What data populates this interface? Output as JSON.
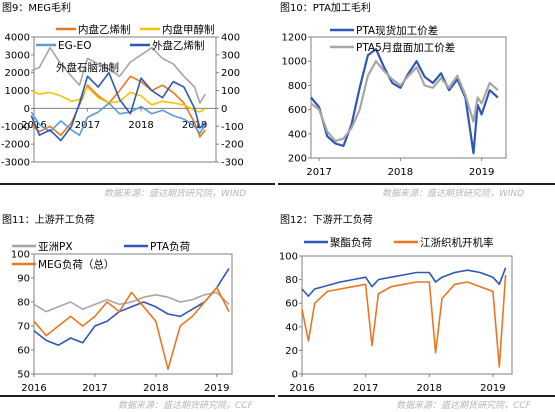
{
  "panels": [
    {
      "id": "p9",
      "title": "图9：MEG毛利",
      "source": "数据来源：盛达期货研究院，WIND"
    },
    {
      "id": "p10",
      "title": "图10：PTA加工毛利",
      "source": "数据来源：盛达期货研究院，WIND"
    },
    {
      "id": "p11",
      "title": "图11：上游开工负荷",
      "source": "数据来源：盛达期货研究院，CCF"
    },
    {
      "id": "p12",
      "title": "图12：下游开工负荷",
      "source": "数据来源：盛达期货研究院，CCF"
    }
  ],
  "chart_data": [
    {
      "type": "line",
      "x_ticks": [
        "2016",
        "2017",
        "2018",
        "2019"
      ],
      "ylim": [
        -3000,
        4000
      ],
      "y_ticks": [
        -3000,
        -2000,
        -1000,
        0,
        1000,
        2000,
        3000,
        4000
      ],
      "y2lim": [
        -300,
        400
      ],
      "y2_ticks": [
        -300,
        -200,
        -100,
        0,
        100,
        200,
        300,
        400
      ],
      "legend": [
        "内盘乙烯制",
        "内盘甲醇制",
        "EG-EO",
        "外盘乙烯制",
        "外盘石脑油制"
      ],
      "series": [
        {
          "name": "内盘乙烯制",
          "axis": "left",
          "color": "#e87722",
          "x": [
            2015.95,
            2016.1,
            2016.3,
            2016.5,
            2016.7,
            2016.85,
            2017.0,
            2017.2,
            2017.4,
            2017.6,
            2017.8,
            2018.0,
            2018.2,
            2018.4,
            2018.6,
            2018.8,
            2019.0,
            2019.1,
            2019.2
          ],
          "values": [
            -900,
            -1300,
            -1000,
            -1500,
            -800,
            200,
            1300,
            700,
            300,
            1000,
            1800,
            1500,
            1000,
            1300,
            900,
            300,
            -800,
            -1600,
            -1200
          ]
        },
        {
          "name": "内盘甲醇制",
          "axis": "left",
          "color": "#f5c400",
          "x": [
            2015.95,
            2016.1,
            2016.3,
            2016.5,
            2016.7,
            2016.85,
            2017.0,
            2017.2,
            2017.4,
            2017.6,
            2017.8,
            2018.0,
            2018.2,
            2018.4,
            2018.6,
            2018.8,
            2019.0,
            2019.1,
            2019.2
          ],
          "values": [
            1000,
            800,
            900,
            700,
            400,
            500,
            1200,
            600,
            300,
            400,
            900,
            700,
            200,
            400,
            300,
            200,
            -100,
            -200,
            0
          ]
        },
        {
          "name": "EG-EO",
          "axis": "left",
          "color": "#5b9bd5",
          "x": [
            2015.95,
            2016.1,
            2016.3,
            2016.5,
            2016.7,
            2016.85,
            2017.0,
            2017.2,
            2017.4,
            2017.6,
            2017.8,
            2018.0,
            2018.2,
            2018.4,
            2018.6,
            2018.8,
            2019.0,
            2019.1,
            2019.2
          ],
          "values": [
            -200,
            -900,
            -1300,
            -700,
            -1200,
            -1500,
            -500,
            -200,
            300,
            -300,
            -200,
            100,
            -300,
            -100,
            -400,
            -600,
            -1000,
            -1400,
            -900
          ]
        },
        {
          "name": "外盘乙烯制",
          "axis": "right",
          "color": "#2e58b5",
          "x": [
            2015.95,
            2016.1,
            2016.3,
            2016.5,
            2016.7,
            2016.85,
            2017.0,
            2017.2,
            2017.4,
            2017.6,
            2017.8,
            2018.0,
            2018.2,
            2018.4,
            2018.6,
            2018.8,
            2019.0,
            2019.1,
            2019.2
          ],
          "values": [
            -40,
            -150,
            -120,
            -180,
            -100,
            30,
            180,
            120,
            200,
            50,
            -30,
            170,
            100,
            60,
            150,
            120,
            0,
            -110,
            -80
          ]
        },
        {
          "name": "外盘石脑油制",
          "axis": "right",
          "color": "#a6a6a6",
          "x": [
            2015.95,
            2016.1,
            2016.3,
            2016.5,
            2016.7,
            2016.85,
            2017.0,
            2017.2,
            2017.4,
            2017.6,
            2017.8,
            2018.0,
            2018.2,
            2018.4,
            2018.6,
            2018.8,
            2019.0,
            2019.1,
            2019.2
          ],
          "values": [
            210,
            230,
            340,
            250,
            180,
            130,
            280,
            250,
            220,
            180,
            260,
            300,
            340,
            280,
            250,
            180,
            120,
            30,
            80
          ]
        }
      ]
    },
    {
      "type": "line",
      "x_ticks": [
        "2017",
        "2018",
        "2019"
      ],
      "ylim": [
        200,
        1200
      ],
      "y_ticks": [
        200,
        400,
        600,
        800,
        1000,
        1200
      ],
      "legend": [
        "PTA现货加工价差",
        "PTA5月盘面加工价差"
      ],
      "series": [
        {
          "name": "PTA现货加工价差",
          "color": "#2e58b5",
          "x": [
            2016.9,
            2017.0,
            2017.1,
            2017.2,
            2017.3,
            2017.4,
            2017.5,
            2017.6,
            2017.7,
            2017.8,
            2017.9,
            2018.0,
            2018.1,
            2018.2,
            2018.3,
            2018.4,
            2018.5,
            2018.6,
            2018.7,
            2018.8,
            2018.9,
            2018.95,
            2019.0,
            2019.1,
            2019.2
          ],
          "values": [
            700,
            620,
            380,
            320,
            300,
            480,
            780,
            1050,
            1100,
            950,
            820,
            780,
            900,
            1000,
            870,
            820,
            900,
            760,
            850,
            700,
            240,
            640,
            560,
            760,
            700
          ]
        },
        {
          "name": "PTA5月盘面加工价差",
          "color": "#a6a6a6",
          "x": [
            2016.9,
            2017.0,
            2017.1,
            2017.2,
            2017.3,
            2017.4,
            2017.5,
            2017.6,
            2017.7,
            2017.8,
            2017.9,
            2018.0,
            2018.1,
            2018.2,
            2018.3,
            2018.4,
            2018.5,
            2018.6,
            2018.7,
            2018.8,
            2018.9,
            2018.95,
            2019.0,
            2019.1,
            2019.2
          ],
          "values": [
            650,
            600,
            420,
            340,
            360,
            450,
            600,
            880,
            1000,
            920,
            850,
            800,
            880,
            950,
            800,
            780,
            860,
            780,
            880,
            720,
            500,
            700,
            650,
            820,
            760
          ]
        }
      ]
    },
    {
      "type": "line",
      "x_ticks": [
        "2016",
        "2017",
        "2018",
        "2019"
      ],
      "ylim": [
        50,
        100
      ],
      "y_ticks": [
        50,
        60,
        70,
        80,
        90,
        100
      ],
      "legend": [
        "亚洲PX",
        "PTA负荷",
        "MEG负荷（总）"
      ],
      "series": [
        {
          "name": "亚洲PX",
          "color": "#a6a6a6",
          "x": [
            2016.0,
            2016.2,
            2016.4,
            2016.6,
            2016.8,
            2017.0,
            2017.2,
            2017.4,
            2017.6,
            2017.8,
            2018.0,
            2018.2,
            2018.4,
            2018.6,
            2018.8,
            2019.0,
            2019.2
          ],
          "values": [
            79,
            76,
            78,
            80,
            77,
            79,
            81,
            79,
            80,
            82,
            83,
            82,
            80,
            81,
            83,
            84,
            79
          ]
        },
        {
          "name": "PTA负荷",
          "color": "#2e58b5",
          "x": [
            2016.0,
            2016.2,
            2016.4,
            2016.6,
            2016.8,
            2017.0,
            2017.2,
            2017.4,
            2017.6,
            2017.8,
            2018.0,
            2018.2,
            2018.4,
            2018.6,
            2018.8,
            2019.0,
            2019.2
          ],
          "values": [
            68,
            64,
            62,
            65,
            63,
            70,
            72,
            76,
            78,
            80,
            78,
            75,
            74,
            77,
            80,
            86,
            94
          ]
        },
        {
          "name": "MEG负荷（总）",
          "color": "#e87722",
          "x": [
            2016.0,
            2016.2,
            2016.4,
            2016.6,
            2016.8,
            2017.0,
            2017.2,
            2017.4,
            2017.6,
            2017.8,
            2018.0,
            2018.2,
            2018.4,
            2018.6,
            2018.8,
            2019.0,
            2019.2
          ],
          "values": [
            72,
            66,
            70,
            74,
            70,
            74,
            80,
            76,
            84,
            78,
            72,
            52,
            70,
            74,
            80,
            86,
            76
          ]
        }
      ]
    },
    {
      "type": "line",
      "x_ticks": [
        "2016",
        "2017",
        "2018",
        "2019"
      ],
      "ylim": [
        0,
        100
      ],
      "y_ticks": [
        0,
        20,
        40,
        60,
        80,
        100
      ],
      "legend": [
        "聚酯负荷",
        "江浙织机开机率"
      ],
      "series": [
        {
          "name": "聚酯负荷",
          "color": "#2e58b5",
          "x": [
            2016.0,
            2016.1,
            2016.2,
            2016.4,
            2016.6,
            2016.8,
            2017.0,
            2017.1,
            2017.2,
            2017.4,
            2017.6,
            2017.8,
            2018.0,
            2018.1,
            2018.2,
            2018.4,
            2018.6,
            2018.8,
            2019.0,
            2019.1,
            2019.2
          ],
          "values": [
            72,
            66,
            72,
            75,
            78,
            80,
            82,
            74,
            80,
            82,
            84,
            86,
            86,
            78,
            82,
            86,
            88,
            86,
            82,
            76,
            90
          ]
        },
        {
          "name": "江浙织机开机率",
          "color": "#e87722",
          "x": [
            2016.0,
            2016.1,
            2016.2,
            2016.4,
            2016.6,
            2016.8,
            2017.0,
            2017.1,
            2017.2,
            2017.4,
            2017.6,
            2017.8,
            2018.0,
            2018.1,
            2018.2,
            2018.4,
            2018.6,
            2018.8,
            2019.0,
            2019.1,
            2019.2
          ],
          "values": [
            55,
            28,
            60,
            70,
            72,
            74,
            76,
            24,
            68,
            74,
            76,
            78,
            78,
            18,
            64,
            76,
            78,
            74,
            70,
            6,
            84
          ]
        }
      ]
    }
  ]
}
